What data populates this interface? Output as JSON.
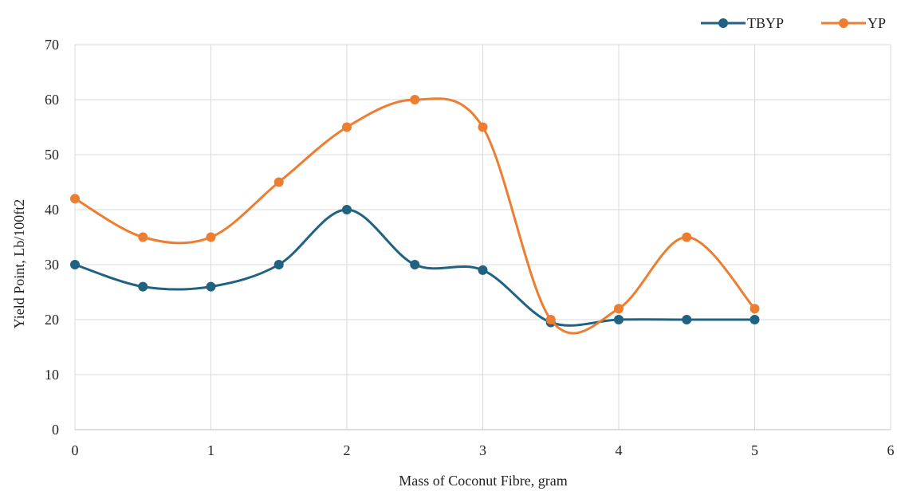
{
  "chart_data": {
    "type": "line",
    "smooth": true,
    "xlabel": "Mass of Coconut Fibre, gram",
    "ylabel": "Yield Point,  Lb/100ft2",
    "xlim": [
      0,
      6
    ],
    "ylim": [
      0,
      70
    ],
    "xticks": [
      "0",
      "1",
      "2",
      "3",
      "4",
      "5",
      "6"
    ],
    "yticks": [
      "0",
      "10",
      "20",
      "30",
      "40",
      "50",
      "60",
      "70"
    ],
    "grid": true,
    "legend_position": "top-right",
    "x": [
      0,
      0.5,
      1,
      1.5,
      2,
      2.5,
      3,
      3.5,
      4,
      4.5,
      5
    ],
    "series": [
      {
        "name": "TBYP",
        "color": "#1f6282",
        "values": [
          30,
          26,
          26,
          30,
          40,
          30,
          29,
          19.5,
          20,
          20,
          20
        ]
      },
      {
        "name": "YP",
        "color": "#ed7d31",
        "values": [
          42,
          35,
          35,
          45,
          55,
          60,
          55,
          20,
          22,
          35,
          22
        ]
      }
    ]
  }
}
